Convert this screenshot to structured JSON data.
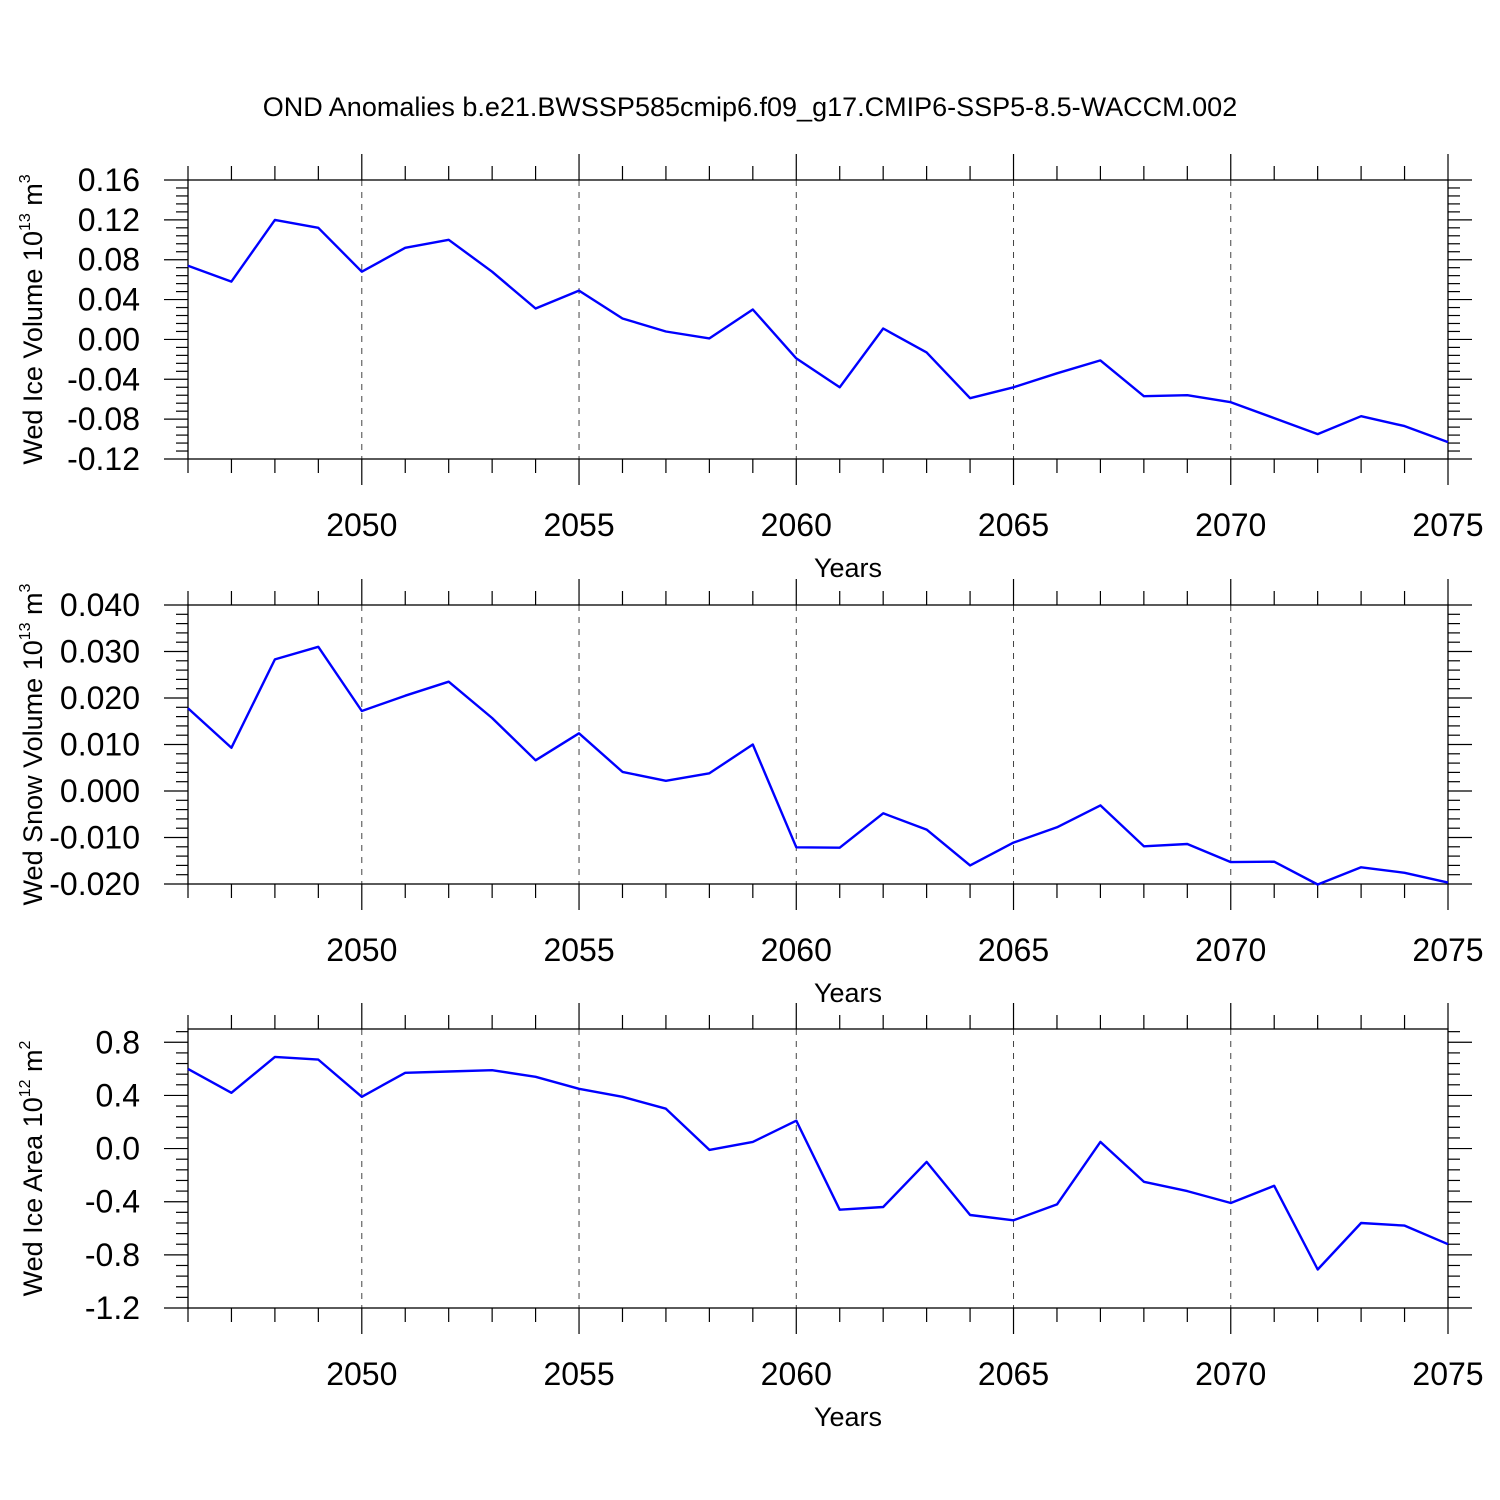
{
  "title": "OND Anomalies b.e21.BWSSP585cmip6.f09_g17.CMIP6-SSP5-8.5-WACCM.002",
  "colors": {
    "line": "#0000ff",
    "axis": "#000000",
    "grid": "#444444"
  },
  "chart_data": [
    {
      "type": "line",
      "ylabel": "Wed Ice Volume 10",
      "ylabel_exp": "13",
      "ylabel_unit": "m",
      "ylabel_unit_exp": "3",
      "xlabel": "Years",
      "xlim": [
        2046,
        2075
      ],
      "ylim": [
        -0.12,
        0.16
      ],
      "y_ticks": [
        -0.12,
        -0.08,
        -0.04,
        0.0,
        0.04,
        0.08,
        0.12,
        0.16
      ],
      "y_tick_labels": [
        "-0.12",
        "-0.08",
        "-0.04",
        "0.00",
        "0.04",
        "0.08",
        "0.12",
        "0.16"
      ],
      "x_ticks": [
        2050,
        2055,
        2060,
        2065,
        2070,
        2075
      ],
      "x_tick_labels": [
        "2050",
        "2055",
        "2060",
        "2065",
        "2070",
        "2075"
      ],
      "grid": "dashed vertical at major x ticks",
      "series": [
        {
          "name": "Wed Ice Volume",
          "x": [
            2046,
            2047,
            2048,
            2049,
            2050,
            2051,
            2052,
            2053,
            2054,
            2055,
            2056,
            2057,
            2058,
            2059,
            2060,
            2061,
            2062,
            2063,
            2064,
            2065,
            2066,
            2067,
            2068,
            2069,
            2070,
            2071,
            2072,
            2073,
            2074,
            2075
          ],
          "values": [
            0.074,
            0.058,
            0.12,
            0.112,
            0.068,
            0.092,
            0.1,
            0.068,
            0.031,
            0.049,
            0.021,
            0.008,
            0.001,
            0.03,
            -0.019,
            -0.048,
            0.011,
            -0.013,
            -0.059,
            -0.048,
            -0.034,
            -0.021,
            -0.057,
            -0.056,
            -0.063,
            -0.079,
            -0.095,
            -0.077,
            -0.087,
            -0.103
          ]
        }
      ]
    },
    {
      "type": "line",
      "ylabel": "Wed Snow Volume 10",
      "ylabel_exp": "13",
      "ylabel_unit": "m",
      "ylabel_unit_exp": "3",
      "xlabel": "Years",
      "xlim": [
        2046,
        2075
      ],
      "ylim": [
        -0.02,
        0.04
      ],
      "y_ticks": [
        -0.02,
        -0.01,
        0.0,
        0.01,
        0.02,
        0.03,
        0.04
      ],
      "y_tick_labels": [
        "-0.020",
        "-0.010",
        "0.000",
        "0.010",
        "0.020",
        "0.030",
        "0.040"
      ],
      "x_ticks": [
        2050,
        2055,
        2060,
        2065,
        2070,
        2075
      ],
      "x_tick_labels": [
        "2050",
        "2055",
        "2060",
        "2065",
        "2070",
        "2075"
      ],
      "grid": "dashed vertical at major x ticks",
      "series": [
        {
          "name": "Wed Snow Volume",
          "x": [
            2046,
            2047,
            2048,
            2049,
            2050,
            2051,
            2052,
            2053,
            2054,
            2055,
            2056,
            2057,
            2058,
            2059,
            2060,
            2061,
            2062,
            2063,
            2064,
            2065,
            2066,
            2067,
            2068,
            2069,
            2070,
            2071,
            2072,
            2073,
            2074,
            2075
          ],
          "values": [
            0.0178,
            0.0093,
            0.0283,
            0.031,
            0.0172,
            0.0205,
            0.0235,
            0.0157,
            0.0066,
            0.0124,
            0.0041,
            0.0022,
            0.0038,
            0.01,
            -0.0121,
            -0.0122,
            -0.0048,
            -0.0083,
            -0.016,
            -0.0111,
            -0.0078,
            -0.0031,
            -0.0119,
            -0.0114,
            -0.0153,
            -0.0152,
            -0.0201,
            -0.0164,
            -0.0176,
            -0.0197
          ]
        }
      ]
    },
    {
      "type": "line",
      "ylabel": "Wed Ice Area 10",
      "ylabel_exp": "12",
      "ylabel_unit": "m",
      "ylabel_unit_exp": "2",
      "xlabel": "Years",
      "xlim": [
        2046,
        2075
      ],
      "ylim": [
        -1.2,
        0.9
      ],
      "y_ticks": [
        -1.2,
        -0.8,
        -0.4,
        0.0,
        0.4,
        0.8
      ],
      "y_tick_labels": [
        "-1.2",
        "-0.8",
        "-0.4",
        "0.0",
        "0.4",
        "0.8"
      ],
      "x_ticks": [
        2050,
        2055,
        2060,
        2065,
        2070,
        2075
      ],
      "x_tick_labels": [
        "2050",
        "2055",
        "2060",
        "2065",
        "2070",
        "2075"
      ],
      "grid": "dashed vertical at major x ticks",
      "series": [
        {
          "name": "Wed Ice Area",
          "x": [
            2046,
            2047,
            2048,
            2049,
            2050,
            2051,
            2052,
            2053,
            2054,
            2055,
            2056,
            2057,
            2058,
            2059,
            2060,
            2061,
            2062,
            2063,
            2064,
            2065,
            2066,
            2067,
            2068,
            2069,
            2070,
            2071,
            2072,
            2073,
            2074,
            2075
          ],
          "values": [
            0.6,
            0.42,
            0.69,
            0.67,
            0.39,
            0.57,
            0.58,
            0.59,
            0.54,
            0.45,
            0.39,
            0.3,
            -0.01,
            0.05,
            0.21,
            -0.46,
            -0.44,
            -0.1,
            -0.5,
            -0.54,
            -0.42,
            0.05,
            -0.25,
            -0.32,
            -0.41,
            -0.28,
            -0.91,
            -0.56,
            -0.58,
            -0.72
          ]
        }
      ]
    }
  ]
}
